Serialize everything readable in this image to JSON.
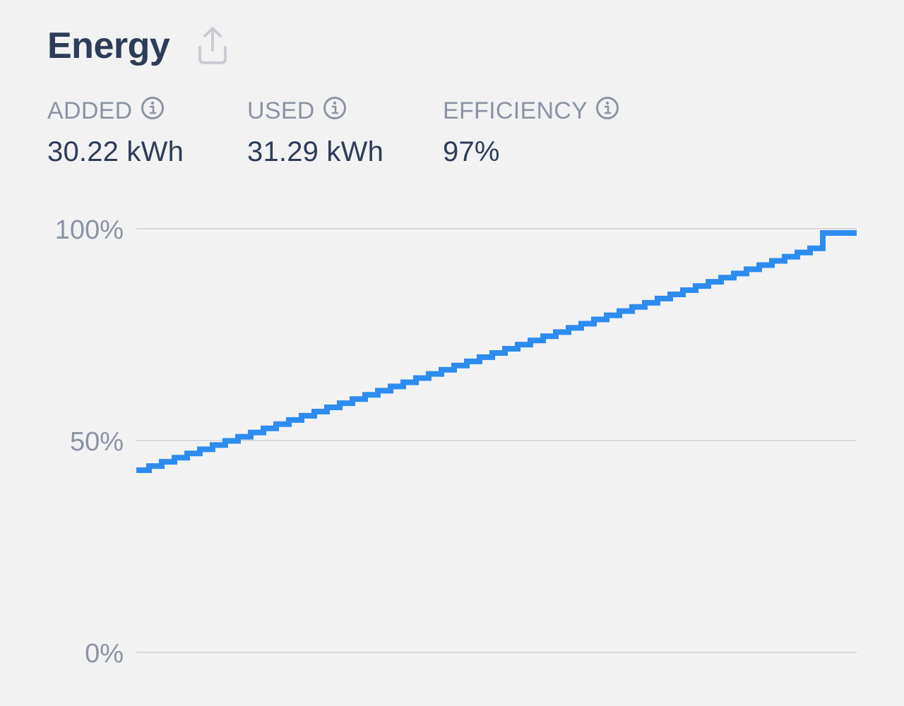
{
  "header": {
    "title": "Energy",
    "share_icon": "share-icon"
  },
  "stats": [
    {
      "label": "ADDED",
      "value": "30.22 kWh",
      "icon": "info-icon"
    },
    {
      "label": "USED",
      "value": "31.29 kWh",
      "icon": "info-icon"
    },
    {
      "label": "EFFICIENCY",
      "value": "97%",
      "icon": "info-icon"
    }
  ],
  "colors": {
    "title": "#2d3c57",
    "label": "#8b93a3",
    "line": "#2d8cf0",
    "grid": "#d6d8de",
    "background": "#f2f2f3"
  },
  "chart_data": {
    "type": "line",
    "title": "",
    "xlabel": "",
    "ylabel": "",
    "ylim": [
      0,
      100
    ],
    "yticks": [
      "0%",
      "50%",
      "100%"
    ],
    "grid": true,
    "style": "stepped",
    "series": [
      {
        "x": [
          0,
          0.05,
          0.1,
          0.15,
          0.2,
          0.25,
          0.3,
          0.35,
          0.4,
          0.45,
          0.5,
          0.55,
          0.6,
          0.65,
          0.7,
          0.75,
          0.8,
          0.85,
          0.9,
          0.95,
          1.0
        ],
        "values": [
          43,
          45.8,
          48.6,
          51.4,
          54.2,
          57,
          59.8,
          62.6,
          65.4,
          68.2,
          71,
          73.8,
          76.6,
          79.4,
          82.2,
          85,
          87.8,
          90.6,
          93.4,
          96.2,
          99
        ]
      }
    ]
  }
}
